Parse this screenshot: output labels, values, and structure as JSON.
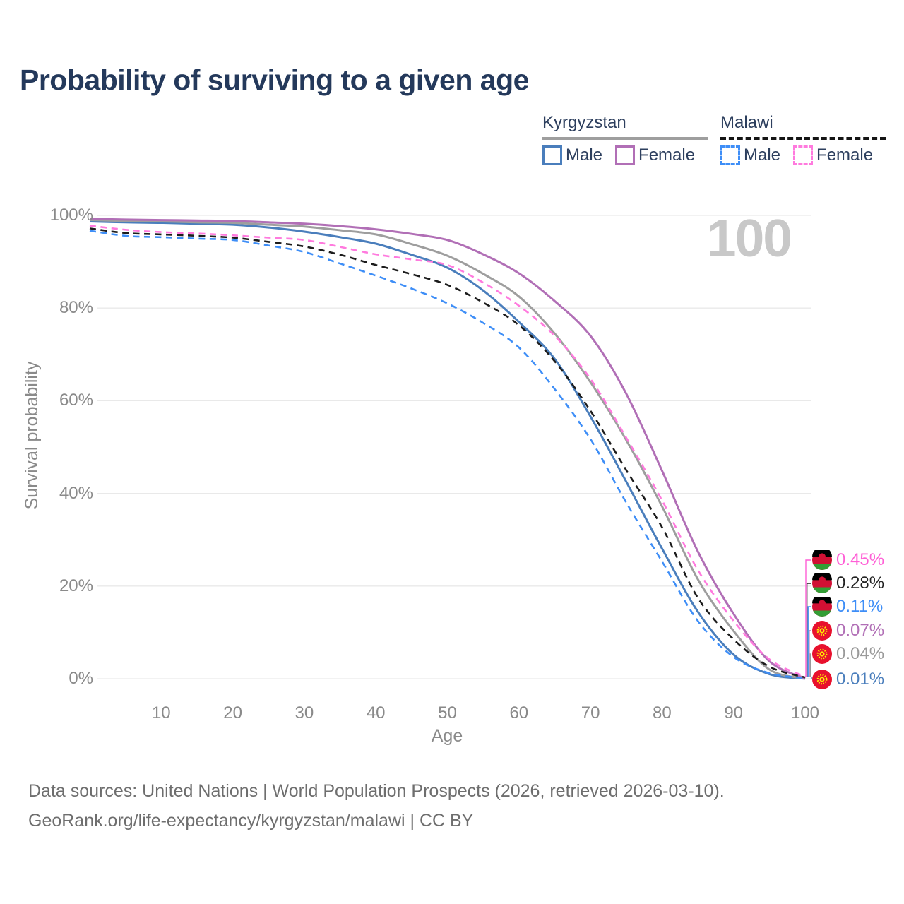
{
  "title": "Probability of surviving to a given age",
  "watermark": "100",
  "legend": {
    "groups": [
      {
        "country": "Kyrgyzstan",
        "line_style": "solid",
        "underline_color": "#9e9e9e",
        "items": [
          {
            "label": "Male",
            "color": "#4a7ebc",
            "dashed": false
          },
          {
            "label": "Female",
            "color": "#b16fb6",
            "dashed": false
          }
        ]
      },
      {
        "country": "Malawi",
        "line_style": "dashed",
        "underline_color": "#151515",
        "items": [
          {
            "label": "Male",
            "color": "#3e8ef7",
            "dashed": true
          },
          {
            "label": "Female",
            "color": "#ff7ade",
            "dashed": true
          }
        ]
      }
    ]
  },
  "chart_data": {
    "type": "line",
    "title": "Probability of surviving to a given age",
    "xlabel": "Age",
    "ylabel": "Survival probability",
    "xlim": [
      0,
      100
    ],
    "ylim": [
      0,
      100
    ],
    "grid": "horizontal",
    "x_ticks": [
      "10",
      "20",
      "30",
      "40",
      "50",
      "60",
      "70",
      "80",
      "90",
      "100"
    ],
    "y_ticks": [
      {
        "value": 0,
        "label": "0%"
      },
      {
        "value": 20,
        "label": "20%"
      },
      {
        "value": 40,
        "label": "40%"
      },
      {
        "value": 60,
        "label": "60%"
      },
      {
        "value": 80,
        "label": "80%"
      },
      {
        "value": 100,
        "label": "100%"
      }
    ],
    "x": [
      0,
      5,
      10,
      15,
      20,
      25,
      30,
      35,
      40,
      45,
      50,
      55,
      60,
      65,
      70,
      75,
      80,
      85,
      90,
      95,
      100
    ],
    "series": [
      {
        "name": "Kyrgyzstan Male",
        "country": "Kyrgyzstan",
        "sex": "Male",
        "style": "solid",
        "color": "#4a7ebc",
        "end_label": "0.01%",
        "values": [
          98.7,
          98.5,
          98.4,
          98.2,
          98.0,
          97.4,
          96.5,
          95.3,
          93.9,
          91.5,
          88.7,
          83.8,
          77.0,
          69.0,
          56.6,
          42.5,
          28.1,
          14.5,
          5.2,
          1.0,
          0.01
        ]
      },
      {
        "name": "Kyrgyzstan (both sexes)",
        "country": "Kyrgyzstan",
        "sex": "Both",
        "style": "solid",
        "color": "#9e9e9e",
        "end_label": "0.04%",
        "values": [
          99.0,
          98.8,
          98.7,
          98.5,
          98.4,
          98.0,
          97.6,
          96.8,
          95.9,
          93.8,
          91.3,
          87.4,
          82.5,
          74.5,
          64.0,
          51.5,
          37.2,
          21.5,
          10.3,
          2.0,
          0.04
        ]
      },
      {
        "name": "Kyrgyzstan Female",
        "country": "Kyrgyzstan",
        "sex": "Female",
        "style": "solid",
        "color": "#b16fb6",
        "end_label": "0.07%",
        "values": [
          99.3,
          99.1,
          99.0,
          98.9,
          98.8,
          98.5,
          98.2,
          97.7,
          97.0,
          96.0,
          94.7,
          91.6,
          87.5,
          81.5,
          74.0,
          61.5,
          44.9,
          27.5,
          14.0,
          3.8,
          0.07
        ]
      },
      {
        "name": "Malawi Male",
        "country": "Malawi",
        "sex": "Male",
        "style": "dashed",
        "color": "#3e8ef7",
        "end_label": "0.11%",
        "values": [
          96.7,
          95.6,
          95.3,
          95.0,
          94.7,
          93.5,
          92.1,
          89.6,
          87.0,
          84.2,
          81.0,
          76.8,
          71.5,
          62.5,
          51.7,
          38.0,
          25.3,
          12.5,
          4.7,
          1.2,
          0.11
        ]
      },
      {
        "name": "Malawi (both sexes)",
        "country": "Malawi",
        "sex": "Both",
        "style": "dashed",
        "color": "#1c1c1c",
        "end_label": "0.28%",
        "values": [
          97.2,
          96.2,
          95.9,
          95.6,
          95.2,
          94.3,
          93.3,
          91.5,
          89.3,
          87.3,
          85.0,
          81.2,
          76.3,
          68.5,
          57.8,
          45.0,
          32.7,
          17.5,
          8.5,
          2.6,
          0.28
        ]
      },
      {
        "name": "Malawi Female",
        "country": "Malawi",
        "sex": "Female",
        "style": "dashed",
        "color": "#ff7ade",
        "end_label": "0.45%",
        "values": [
          97.8,
          96.9,
          96.4,
          96.1,
          95.7,
          95.2,
          94.7,
          93.2,
          91.6,
          90.5,
          89.3,
          85.5,
          80.5,
          74.0,
          64.7,
          52.0,
          38.5,
          23.5,
          12.5,
          4.2,
          0.45
        ]
      }
    ]
  },
  "end_labels": [
    {
      "value": "0.45%",
      "series": "Malawi Female",
      "color": "#ff5fd6",
      "flag": "malawi"
    },
    {
      "value": "0.28%",
      "series": "Malawi (both sexes)",
      "color": "#222222",
      "flag": "malawi"
    },
    {
      "value": "0.11%",
      "series": "Malawi Male",
      "color": "#3e8ef7",
      "flag": "malawi"
    },
    {
      "value": "0.07%",
      "series": "Kyrgyzstan Female",
      "color": "#b16fb6",
      "flag": "kyrgyzstan"
    },
    {
      "value": "0.04%",
      "series": "Kyrgyzstan (both sexes)",
      "color": "#9a9a9a",
      "flag": "kyrgyzstan"
    },
    {
      "value": "0.01%",
      "series": "Kyrgyzstan Male",
      "color": "#4a7ebc",
      "flag": "kyrgyzstan"
    }
  ],
  "footer": {
    "line1": "Data sources: United Nations | World Population Prospects (2026, retrieved 2026-03-10).",
    "line2": "GeoRank.org/life-expectancy/kyrgyzstan/malawi | CC BY"
  }
}
